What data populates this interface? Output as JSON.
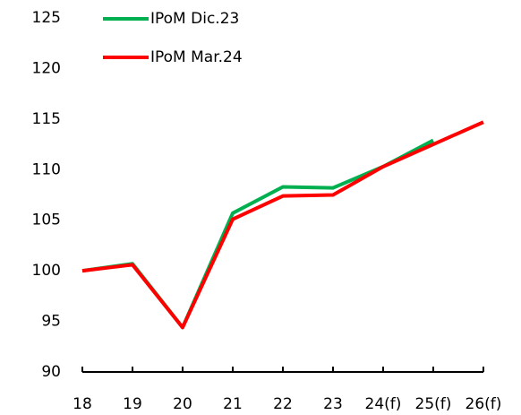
{
  "chart_data": {
    "type": "line",
    "categories": [
      "18",
      "19",
      "20",
      "21",
      "22",
      "23",
      "24(f)",
      "25(f)",
      "26(f)"
    ],
    "series": [
      {
        "name": "IPoM Dic.23",
        "color": "#00b050",
        "values": [
          100,
          100.7,
          94.4,
          105.7,
          108.3,
          108.2,
          110.3,
          112.9,
          null
        ]
      },
      {
        "name": "IPoM Mar.24",
        "color": "#ff0000",
        "values": [
          100,
          100.6,
          94.4,
          105.1,
          107.4,
          107.5,
          110.3,
          112.5,
          114.7
        ]
      }
    ],
    "ylim": [
      90,
      125
    ],
    "yticks": [
      90,
      95,
      100,
      105,
      110,
      115,
      120,
      125
    ],
    "grid": false
  }
}
